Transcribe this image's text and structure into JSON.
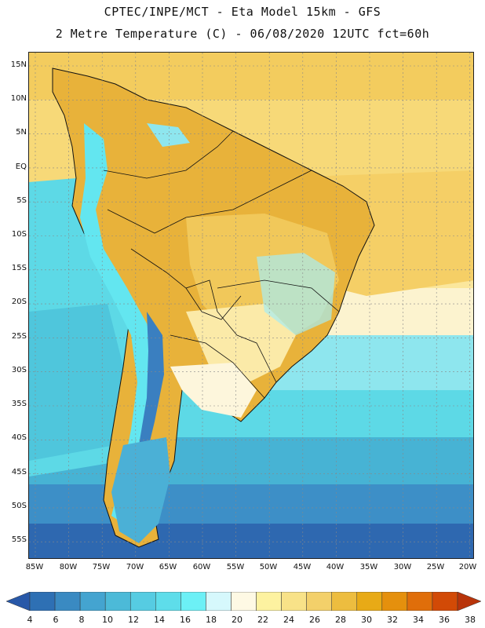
{
  "title": {
    "line1": "CPTEC/INPE/MCT -  Eta Model 15km - GFS",
    "line2": "2 Metre Temperature (C) - 06/08/2020 12UTC fct=60h"
  },
  "map": {
    "region": "South America",
    "lat_labels": [
      "15N",
      "10N",
      "5N",
      "EQ",
      "5S",
      "10S",
      "15S",
      "20S",
      "25S",
      "30S",
      "35S",
      "40S",
      "45S",
      "50S",
      "55S"
    ],
    "lon_labels": [
      "85W",
      "80W",
      "75W",
      "70W",
      "65W",
      "60W",
      "55W",
      "50W",
      "45W",
      "40W",
      "35W",
      "30W",
      "25W",
      "20W"
    ],
    "colors": {
      "land_hot": "#e8b23a",
      "land_warm": "#f1c85a",
      "ocean_warm": "#f7d978",
      "ocean_mild": "#fcf0bf",
      "ocean_cool": "#5dd9e6",
      "ocean_cold": "#47b3d4",
      "ocean_colder": "#3d8fc7",
      "ocean_coldest": "#2e68b0",
      "andes": "#63e6f0",
      "andes_high": "#3a7fc0"
    }
  },
  "colorbar": {
    "labels": [
      "4",
      "6",
      "8",
      "10",
      "12",
      "14",
      "16",
      "18",
      "20",
      "22",
      "24",
      "26",
      "28",
      "30",
      "32",
      "34",
      "36",
      "38"
    ],
    "colors": [
      "#2858a8",
      "#2e70b4",
      "#3a8ac2",
      "#44a4d0",
      "#4cbad8",
      "#56cce2",
      "#5eddea",
      "#6cf0f6",
      "#d6f8fc",
      "#fef9e4",
      "#fdf2a0",
      "#f8e288",
      "#f3d06a",
      "#edbd3f",
      "#e8aa16",
      "#e5900d",
      "#e06e0a",
      "#d24a06",
      "#b8340a"
    ]
  }
}
